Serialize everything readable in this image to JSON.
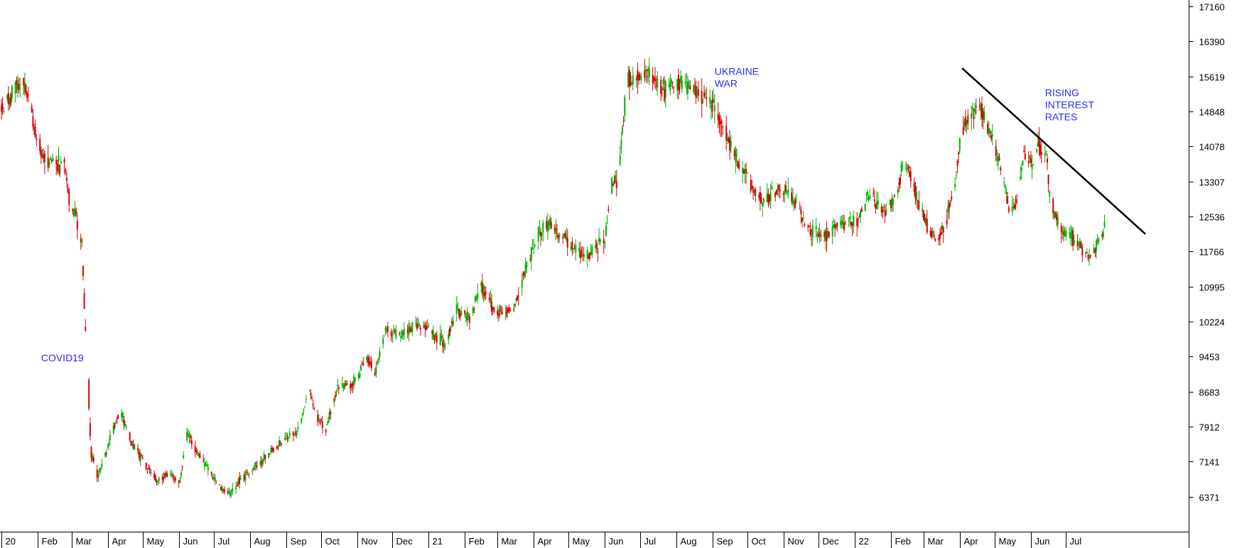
{
  "chart_data": {
    "type": "candlestick",
    "y_axis_side": "right",
    "ylim": [
      5600,
      17300
    ],
    "y_ticks": [
      17160,
      16390,
      15619,
      14848,
      14078,
      13307,
      12536,
      11766,
      10995,
      10224,
      9453,
      8683,
      7912,
      7141,
      6371
    ],
    "x_tick_labels": [
      "20",
      "Feb",
      "Mar",
      "Apr",
      "May",
      "Jun",
      "Jul",
      "Aug",
      "Sep",
      "Oct",
      "Nov",
      "Dec",
      "21",
      "Feb",
      "Mar",
      "Apr",
      "May",
      "Jun",
      "Jul",
      "Aug",
      "Sep",
      "Oct",
      "Nov",
      "Dec",
      "22",
      "Feb",
      "Mar",
      "Apr",
      "May",
      "Jun",
      "Jul"
    ],
    "x_tick_dates": [
      "2020-01",
      "2020-02",
      "2020-03",
      "2020-04",
      "2020-05",
      "2020-06",
      "2020-07",
      "2020-08",
      "2020-09",
      "2020-10",
      "2020-11",
      "2020-12",
      "2021-01",
      "2021-02",
      "2021-03",
      "2021-04",
      "2021-05",
      "2021-06",
      "2021-07",
      "2021-08",
      "2021-09",
      "2021-10",
      "2021-11",
      "2021-12",
      "2022-01",
      "2022-02",
      "2022-03",
      "2022-04",
      "2022-05",
      "2022-06",
      "2022-07"
    ],
    "x_range": [
      "2020-01-01",
      "2022-09-07"
    ],
    "up_color": "#00b000",
    "down_color": "#d80000",
    "price_path": [
      [
        "2020-01-01",
        14900
      ],
      [
        "2020-01-12",
        15300
      ],
      [
        "2020-01-20",
        15500
      ],
      [
        "2020-01-28",
        14600
      ],
      [
        "2020-02-05",
        13900
      ],
      [
        "2020-02-15",
        13700
      ],
      [
        "2020-02-24",
        13600
      ],
      [
        "2020-02-29",
        12800
      ],
      [
        "2020-03-05",
        12500
      ],
      [
        "2020-03-10",
        11900
      ],
      [
        "2020-03-12",
        10500
      ],
      [
        "2020-03-16",
        8300
      ],
      [
        "2020-03-18",
        7300
      ],
      [
        "2020-03-23",
        6800
      ],
      [
        "2020-03-30",
        7300
      ],
      [
        "2020-04-05",
        7800
      ],
      [
        "2020-04-12",
        8300
      ],
      [
        "2020-04-20",
        7600
      ],
      [
        "2020-04-28",
        7300
      ],
      [
        "2020-05-05",
        7000
      ],
      [
        "2020-05-15",
        6700
      ],
      [
        "2020-05-25",
        6900
      ],
      [
        "2020-06-02",
        6700
      ],
      [
        "2020-06-08",
        7800
      ],
      [
        "2020-06-15",
        7400
      ],
      [
        "2020-06-25",
        7000
      ],
      [
        "2020-07-05",
        6600
      ],
      [
        "2020-07-15",
        6400
      ],
      [
        "2020-07-25",
        6800
      ],
      [
        "2020-08-05",
        7000
      ],
      [
        "2020-08-15",
        7300
      ],
      [
        "2020-08-25",
        7500
      ],
      [
        "2020-09-03",
        7700
      ],
      [
        "2020-09-12",
        7800
      ],
      [
        "2020-09-20",
        8800
      ],
      [
        "2020-09-28",
        8100
      ],
      [
        "2020-10-05",
        7900
      ],
      [
        "2020-10-15",
        8800
      ],
      [
        "2020-10-25",
        8800
      ],
      [
        "2020-11-02",
        9000
      ],
      [
        "2020-11-08",
        9500
      ],
      [
        "2020-11-16",
        9100
      ],
      [
        "2020-11-25",
        10100
      ],
      [
        "2020-12-05",
        9900
      ],
      [
        "2020-12-15",
        10000
      ],
      [
        "2020-12-25",
        10200
      ],
      [
        "2021-01-05",
        10000
      ],
      [
        "2021-01-15",
        9700
      ],
      [
        "2021-01-25",
        10500
      ],
      [
        "2021-02-05",
        10300
      ],
      [
        "2021-02-15",
        11000
      ],
      [
        "2021-02-25",
        10500
      ],
      [
        "2021-03-05",
        10400
      ],
      [
        "2021-03-15",
        10500
      ],
      [
        "2021-03-25",
        11400
      ],
      [
        "2021-04-05",
        12200
      ],
      [
        "2021-04-15",
        12400
      ],
      [
        "2021-04-25",
        12100
      ],
      [
        "2021-05-05",
        11900
      ],
      [
        "2021-05-15",
        11600
      ],
      [
        "2021-05-25",
        11900
      ],
      [
        "2021-06-01",
        12000
      ],
      [
        "2021-06-06",
        13200
      ],
      [
        "2021-06-12",
        13400
      ],
      [
        "2021-06-16",
        14500
      ],
      [
        "2021-06-20",
        15600
      ],
      [
        "2021-06-28",
        15600
      ],
      [
        "2021-07-10",
        15700
      ],
      [
        "2021-07-22",
        15300
      ],
      [
        "2021-08-02",
        15500
      ],
      [
        "2021-08-15",
        15300
      ],
      [
        "2021-08-28",
        15200
      ],
      [
        "2021-09-05",
        14800
      ],
      [
        "2021-09-15",
        14200
      ],
      [
        "2021-09-25",
        13600
      ],
      [
        "2021-10-05",
        13200
      ],
      [
        "2021-10-15",
        12900
      ],
      [
        "2021-10-28",
        13200
      ],
      [
        "2021-11-05",
        13100
      ],
      [
        "2021-11-15",
        12600
      ],
      [
        "2021-11-25",
        12200
      ],
      [
        "2021-12-05",
        12100
      ],
      [
        "2021-12-15",
        12300
      ],
      [
        "2021-12-25",
        12400
      ],
      [
        "2022-01-05",
        12500
      ],
      [
        "2022-01-12",
        13000
      ],
      [
        "2022-01-20",
        12800
      ],
      [
        "2022-01-28",
        12600
      ],
      [
        "2022-02-05",
        13000
      ],
      [
        "2022-02-12",
        13800
      ],
      [
        "2022-02-18",
        13400
      ],
      [
        "2022-02-25",
        12800
      ],
      [
        "2022-03-05",
        12300
      ],
      [
        "2022-03-12",
        12000
      ],
      [
        "2022-03-20",
        12400
      ],
      [
        "2022-03-28",
        13400
      ],
      [
        "2022-04-03",
        14500
      ],
      [
        "2022-04-10",
        14800
      ],
      [
        "2022-04-20",
        14900
      ],
      [
        "2022-04-28",
        14200
      ],
      [
        "2022-05-06",
        13600
      ],
      [
        "2022-05-14",
        12600
      ],
      [
        "2022-05-20",
        13000
      ],
      [
        "2022-05-26",
        14000
      ],
      [
        "2022-06-02",
        13700
      ],
      [
        "2022-06-08",
        14100
      ],
      [
        "2022-06-14",
        13900
      ],
      [
        "2022-06-18",
        12700
      ],
      [
        "2022-06-25",
        12400
      ],
      [
        "2022-07-05",
        12100
      ],
      [
        "2022-07-15",
        11800
      ],
      [
        "2022-07-22",
        11600
      ],
      [
        "2022-07-28",
        12000
      ],
      [
        "2022-08-03",
        12300
      ]
    ],
    "trend_line": [
      [
        "2022-04-03",
        15800
      ],
      [
        "2022-09-07",
        12150
      ]
    ],
    "annotations": [
      {
        "lines": [
          "COVID19"
        ],
        "date": "2020-02-04",
        "value": 9350
      },
      {
        "lines": [
          "UKRAINE",
          "WAR"
        ],
        "date": "2021-09-03",
        "value": 15650
      },
      {
        "lines": [
          "RISING",
          "INTEREST",
          "RATES"
        ],
        "date": "2022-06-13",
        "value": 15180
      }
    ],
    "annotation_color": "#2c2cf0",
    "trend_line_color": "#000000"
  }
}
